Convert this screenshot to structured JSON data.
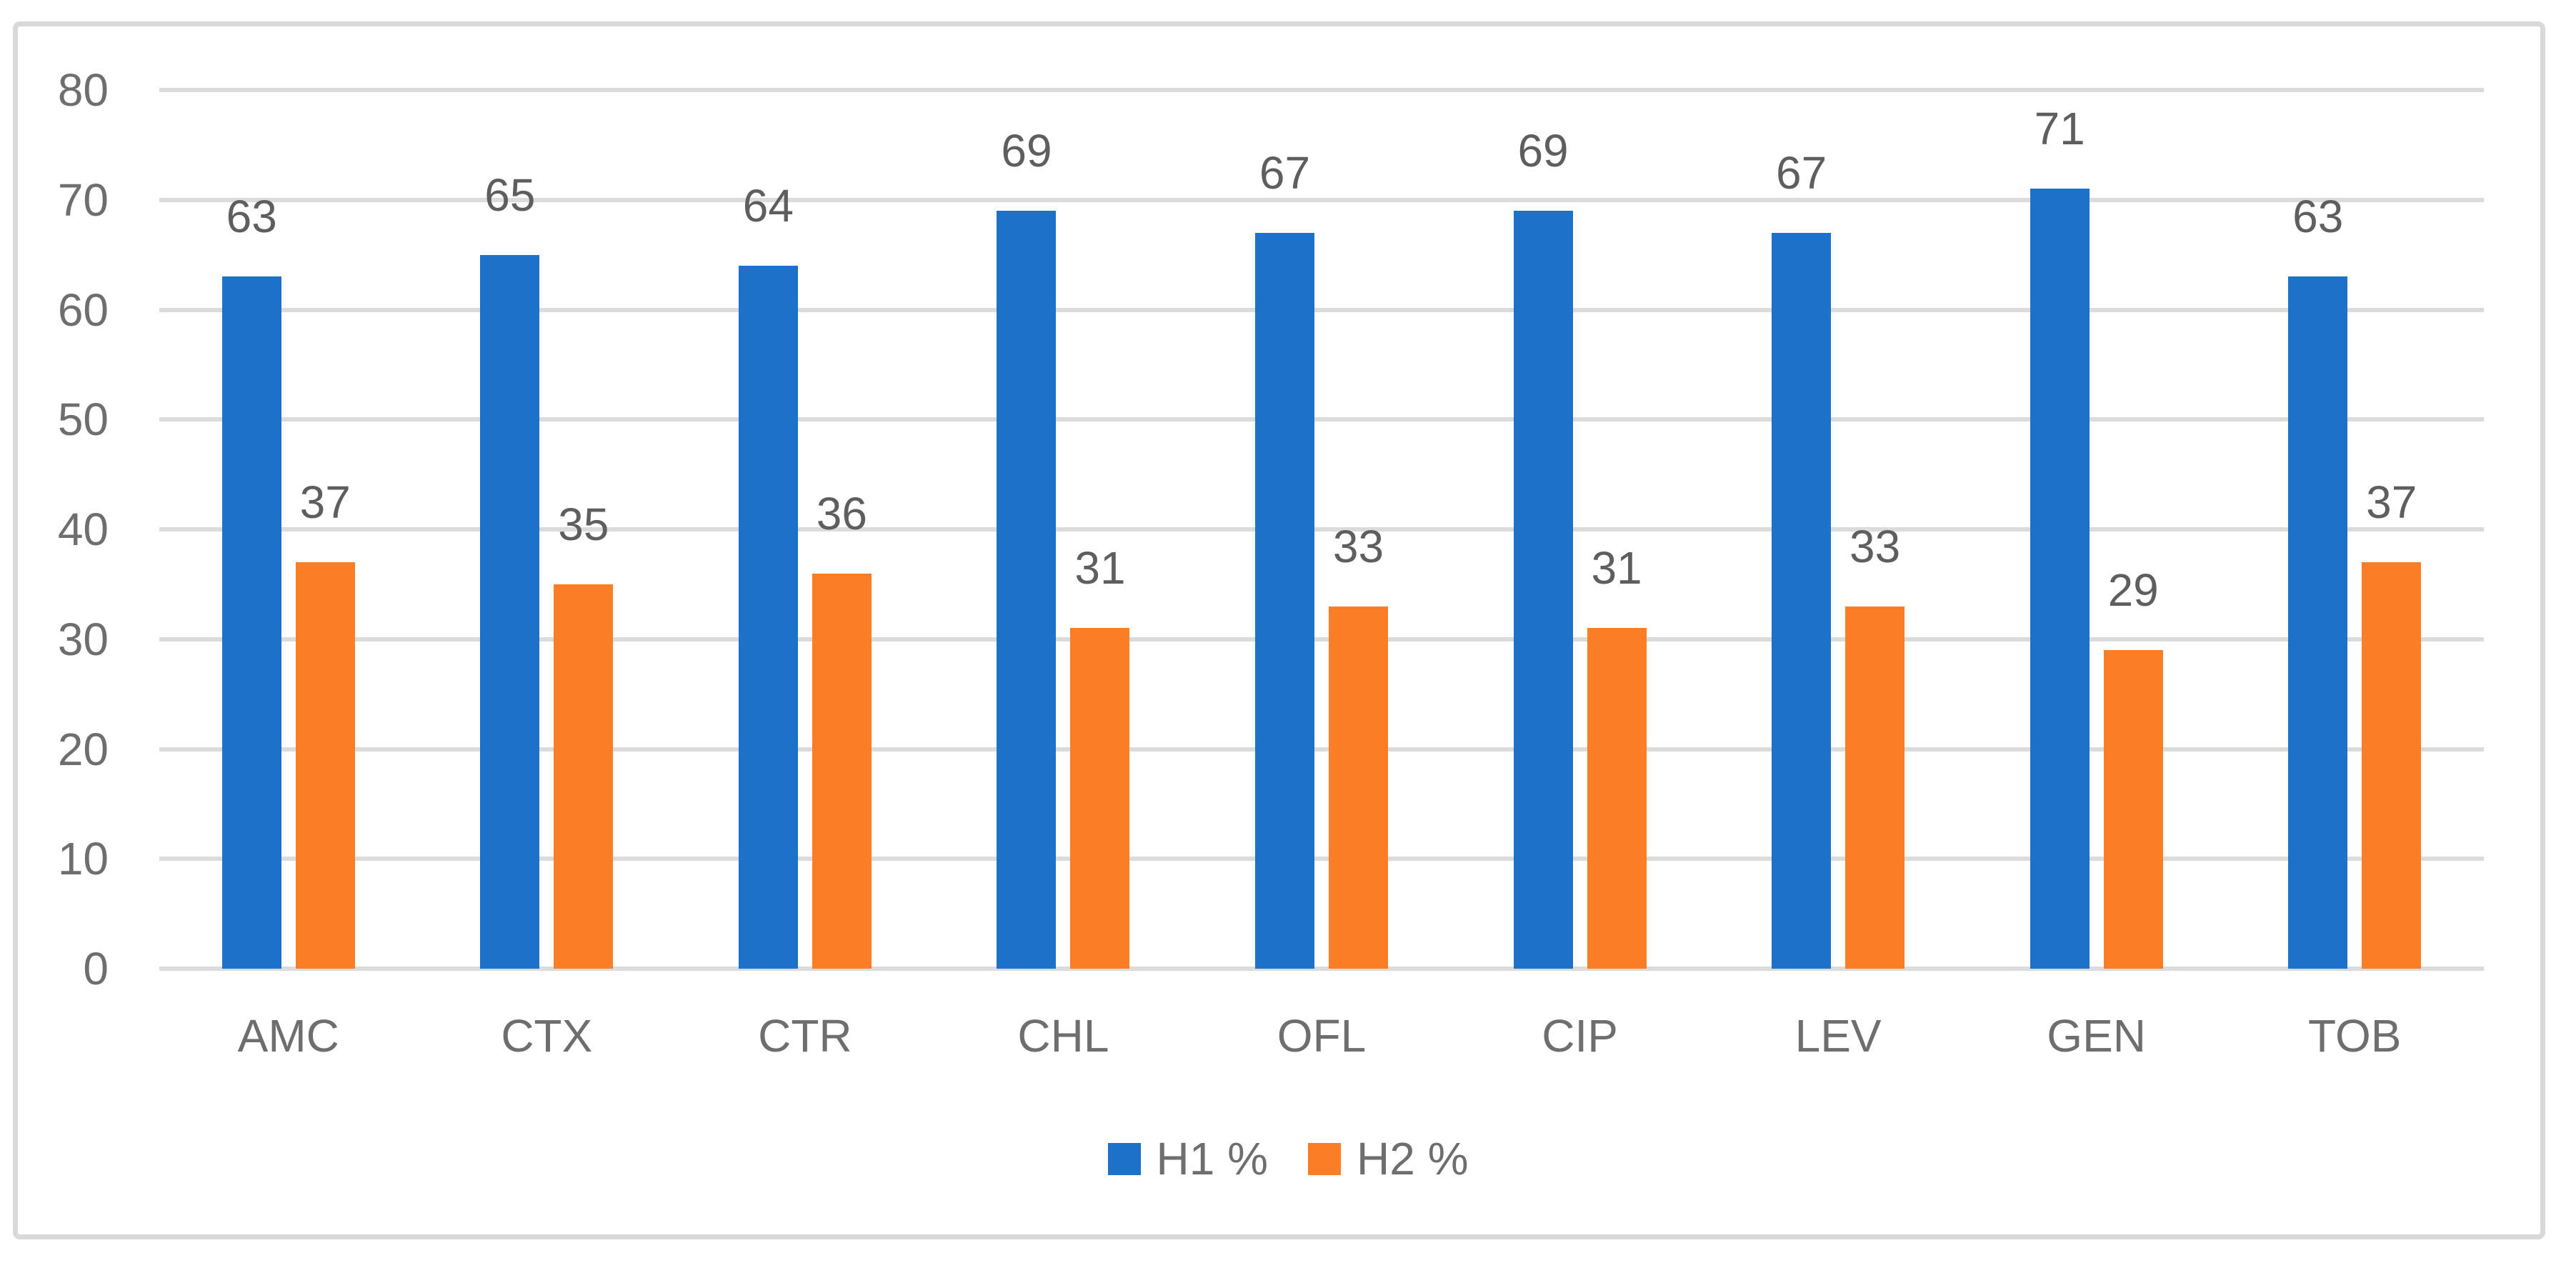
{
  "figure": {
    "background_color": "#FFFFFF",
    "border_color": "#D9D9D9"
  },
  "chart_data": {
    "type": "bar",
    "title": "",
    "xlabel": "",
    "ylabel": "",
    "categories": [
      "AMC",
      "CTX",
      "CTR",
      "CHL",
      "OFL",
      "CIP",
      "LEV",
      "GEN",
      "TOB"
    ],
    "series": [
      {
        "name": "H1 %",
        "color": "#1C72C8",
        "values": [
          63,
          65,
          64,
          69,
          67,
          69,
          67,
          71,
          63
        ]
      },
      {
        "name": "H2 %",
        "color": "#FB7D26",
        "values": [
          37,
          35,
          36,
          31,
          33,
          31,
          33,
          29,
          37
        ]
      }
    ],
    "data_labels_visible": true,
    "ylim": [
      0,
      80
    ],
    "ytick_interval": 10,
    "ytick_labels": [
      "0",
      "10",
      "20",
      "30",
      "40",
      "50",
      "60",
      "70",
      "80"
    ],
    "grid": true,
    "gridline_color": "#DBDBDB",
    "axis_text_color": "#6E6E6E",
    "data_label_color": "#5E5E5E",
    "legend_position": "bottom",
    "legend_labels": [
      "H1 %",
      "H2 %"
    ]
  }
}
